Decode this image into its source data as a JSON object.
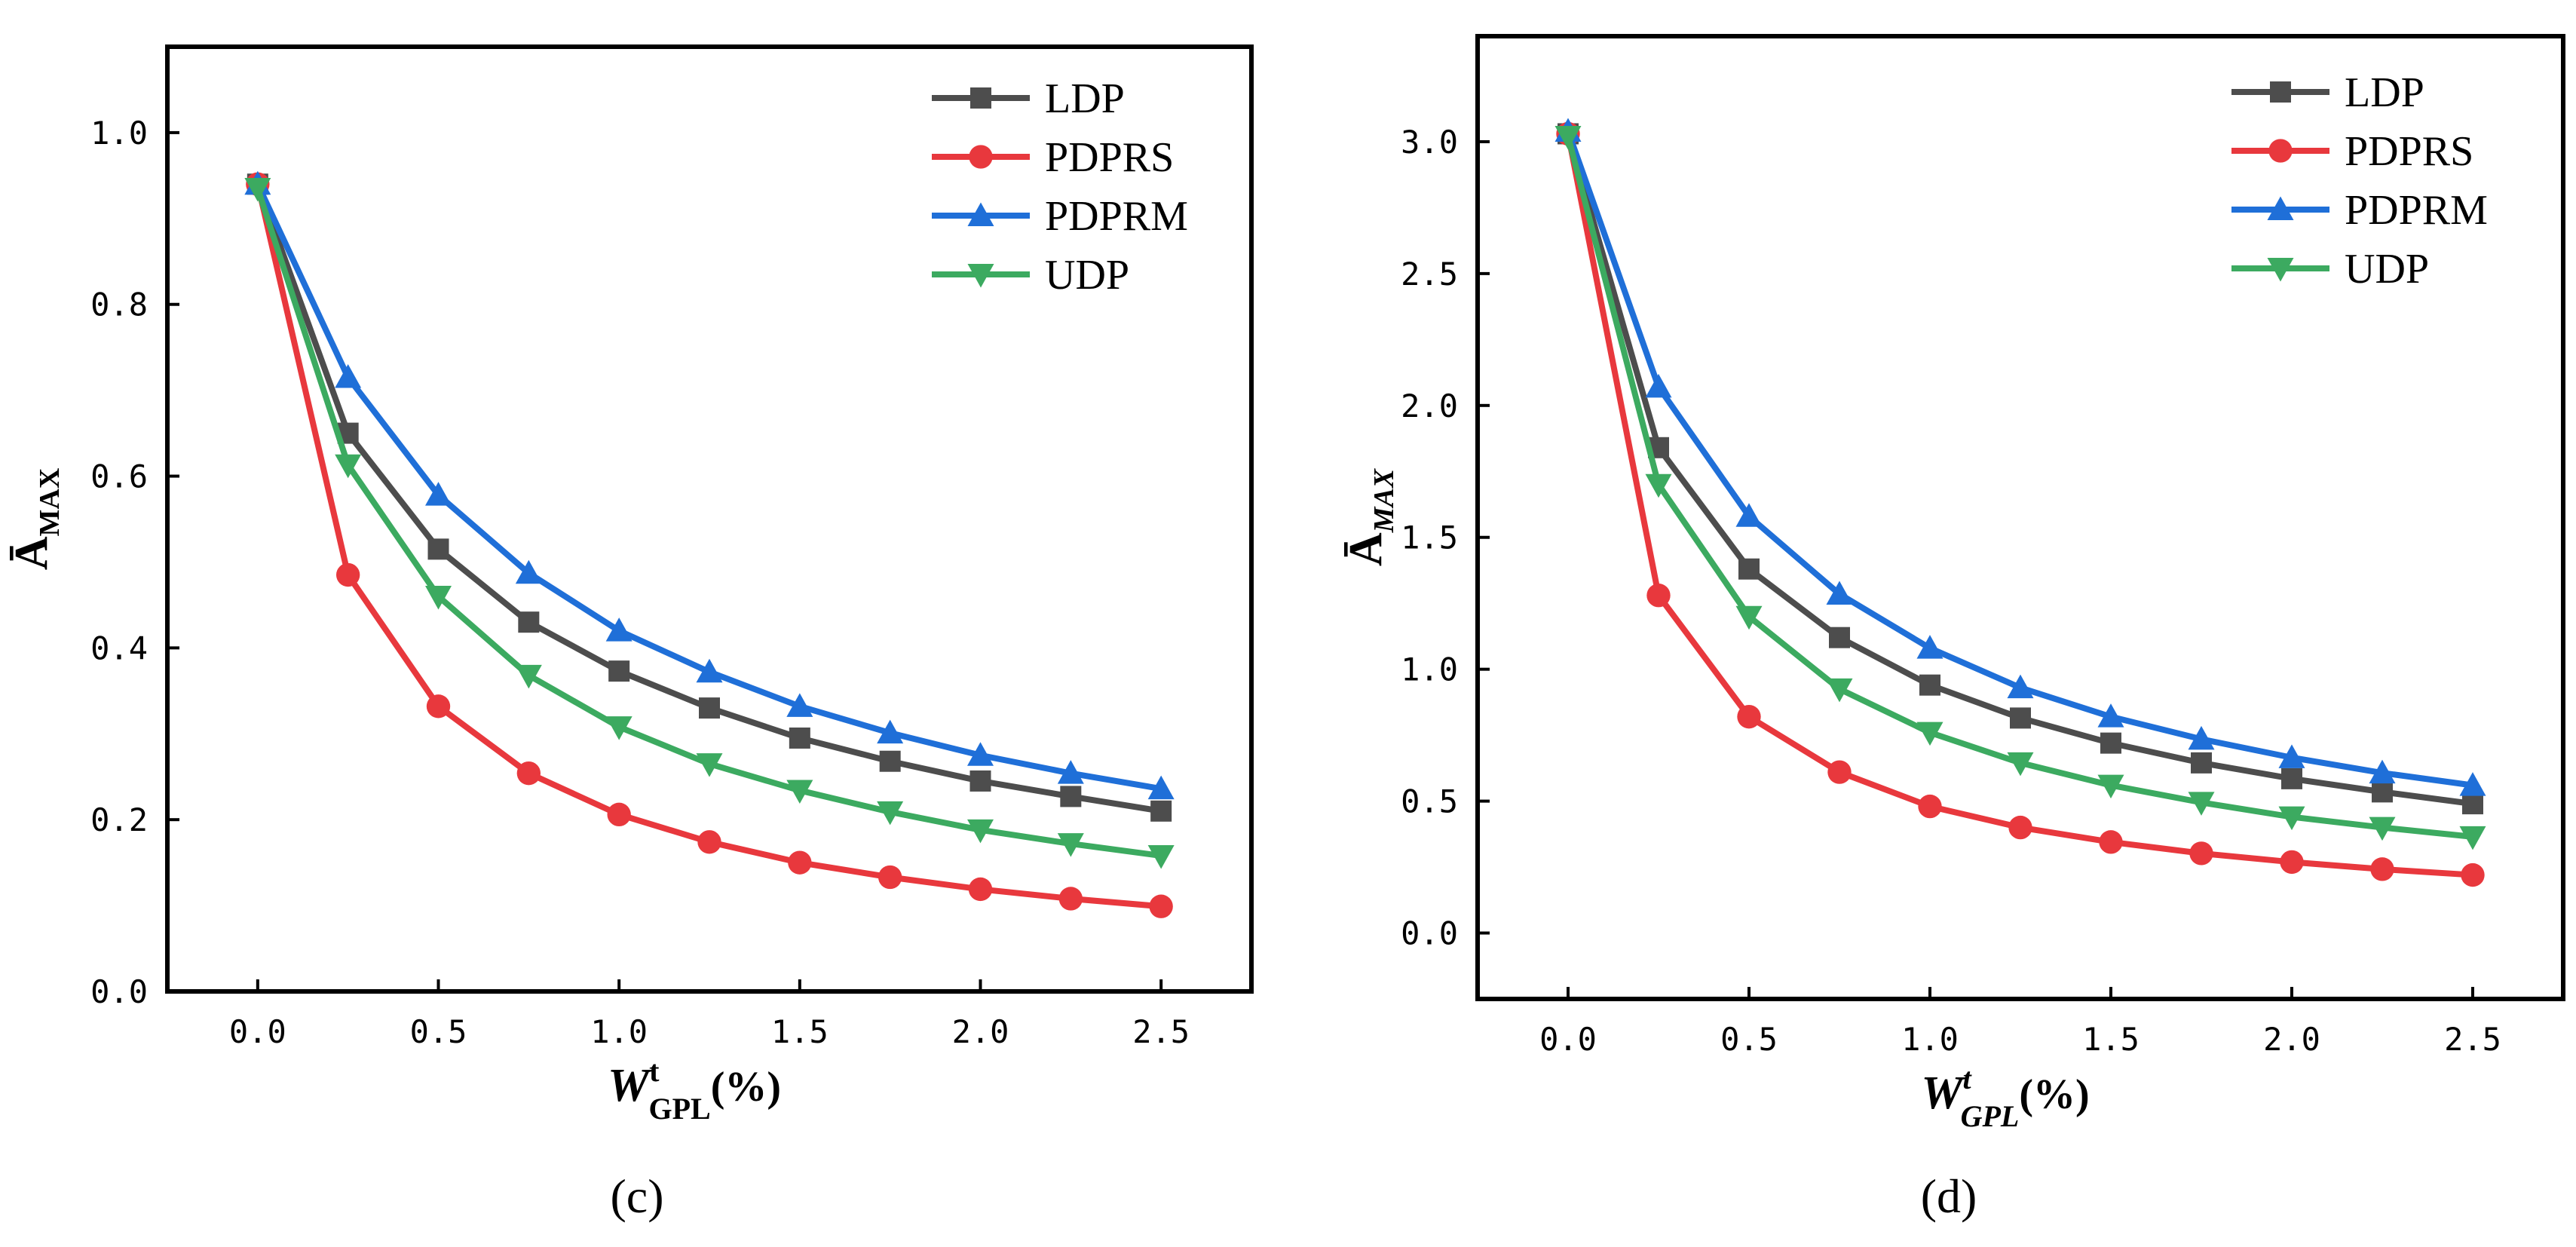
{
  "chart_data": [
    {
      "type": "line",
      "panel_label": "(c)",
      "x": [
        0.0,
        0.25,
        0.5,
        0.75,
        1.0,
        1.25,
        1.5,
        1.75,
        2.0,
        2.25,
        2.5
      ],
      "xlim": [
        -0.25,
        2.75
      ],
      "ylim": [
        0.0,
        1.1
      ],
      "x_ticks": [
        0.0,
        0.5,
        1.0,
        1.5,
        2.0,
        2.5
      ],
      "y_ticks": [
        0.0,
        0.2,
        0.4,
        0.6,
        0.8,
        1.0
      ],
      "x_tick_labels": [
        "0.0",
        "0.5",
        "1.0",
        "1.5",
        "2.0",
        "2.5"
      ],
      "y_tick_labels": [
        "0.0",
        "0.2",
        "0.4",
        "0.6",
        "0.8",
        "1.0"
      ],
      "xlabel": {
        "main": "W",
        "sup": "t",
        "sub": "GPL",
        "suffix": "(%)"
      },
      "ylabel": {
        "main": "Ā",
        "sub": "MAX"
      },
      "legend_position": "top-right",
      "grid": false,
      "series": [
        {
          "name": "LDP",
          "color": "#4d4d4d",
          "marker": "square",
          "values": [
            0.94,
            0.65,
            0.515,
            0.43,
            0.373,
            0.33,
            0.295,
            0.268,
            0.245,
            0.227,
            0.21
          ]
        },
        {
          "name": "PDPRS",
          "color": "#e8383d",
          "marker": "circle",
          "values": [
            0.94,
            0.485,
            0.332,
            0.254,
            0.206,
            0.174,
            0.15,
            0.133,
            0.119,
            0.108,
            0.099
          ]
        },
        {
          "name": "PDPRM",
          "color": "#1f6fd8",
          "marker": "triangle-up",
          "values": [
            0.94,
            0.715,
            0.578,
            0.487,
            0.42,
            0.372,
            0.332,
            0.301,
            0.275,
            0.254,
            0.236
          ]
        },
        {
          "name": "UDP",
          "color": "#3caa60",
          "marker": "triangle-down",
          "values": [
            0.935,
            0.613,
            0.46,
            0.368,
            0.308,
            0.265,
            0.234,
            0.209,
            0.188,
            0.172,
            0.158
          ]
        }
      ]
    },
    {
      "type": "line",
      "panel_label": "(d)",
      "x": [
        0.0,
        0.25,
        0.5,
        0.75,
        1.0,
        1.25,
        1.5,
        1.75,
        2.0,
        2.25,
        2.5
      ],
      "xlim": [
        -0.25,
        2.75
      ],
      "ylim": [
        -0.25,
        3.4
      ],
      "x_ticks": [
        0.0,
        0.5,
        1.0,
        1.5,
        2.0,
        2.5
      ],
      "y_ticks": [
        0.0,
        0.5,
        1.0,
        1.5,
        2.0,
        2.5,
        3.0
      ],
      "x_tick_labels": [
        "0.0",
        "0.5",
        "1.0",
        "1.5",
        "2.0",
        "2.5"
      ],
      "y_tick_labels": [
        "0.0",
        "0.5",
        "1.0",
        "1.5",
        "2.0",
        "2.5",
        "3.0"
      ],
      "xlabel": {
        "main": "W",
        "sup": "t",
        "sub": "GPL",
        "suffix": "(%)"
      },
      "ylabel": {
        "main": "Ā",
        "sub": "MAX"
      },
      "legend_position": "top-right",
      "grid": false,
      "series": [
        {
          "name": "LDP",
          "color": "#4d4d4d",
          "marker": "square",
          "values": [
            3.03,
            1.84,
            1.38,
            1.12,
            0.94,
            0.815,
            0.72,
            0.645,
            0.585,
            0.535,
            0.49
          ]
        },
        {
          "name": "PDPRS",
          "color": "#e8383d",
          "marker": "circle",
          "values": [
            3.03,
            1.28,
            0.82,
            0.61,
            0.48,
            0.4,
            0.345,
            0.302,
            0.269,
            0.242,
            0.22
          ]
        },
        {
          "name": "PDPRM",
          "color": "#1f6fd8",
          "marker": "triangle-up",
          "values": [
            3.04,
            2.07,
            1.58,
            1.285,
            1.08,
            0.93,
            0.82,
            0.735,
            0.665,
            0.607,
            0.56
          ]
        },
        {
          "name": "UDP",
          "color": "#3caa60",
          "marker": "triangle-down",
          "values": [
            3.02,
            1.7,
            1.2,
            0.925,
            0.76,
            0.645,
            0.56,
            0.495,
            0.44,
            0.4,
            0.365
          ]
        }
      ]
    }
  ]
}
